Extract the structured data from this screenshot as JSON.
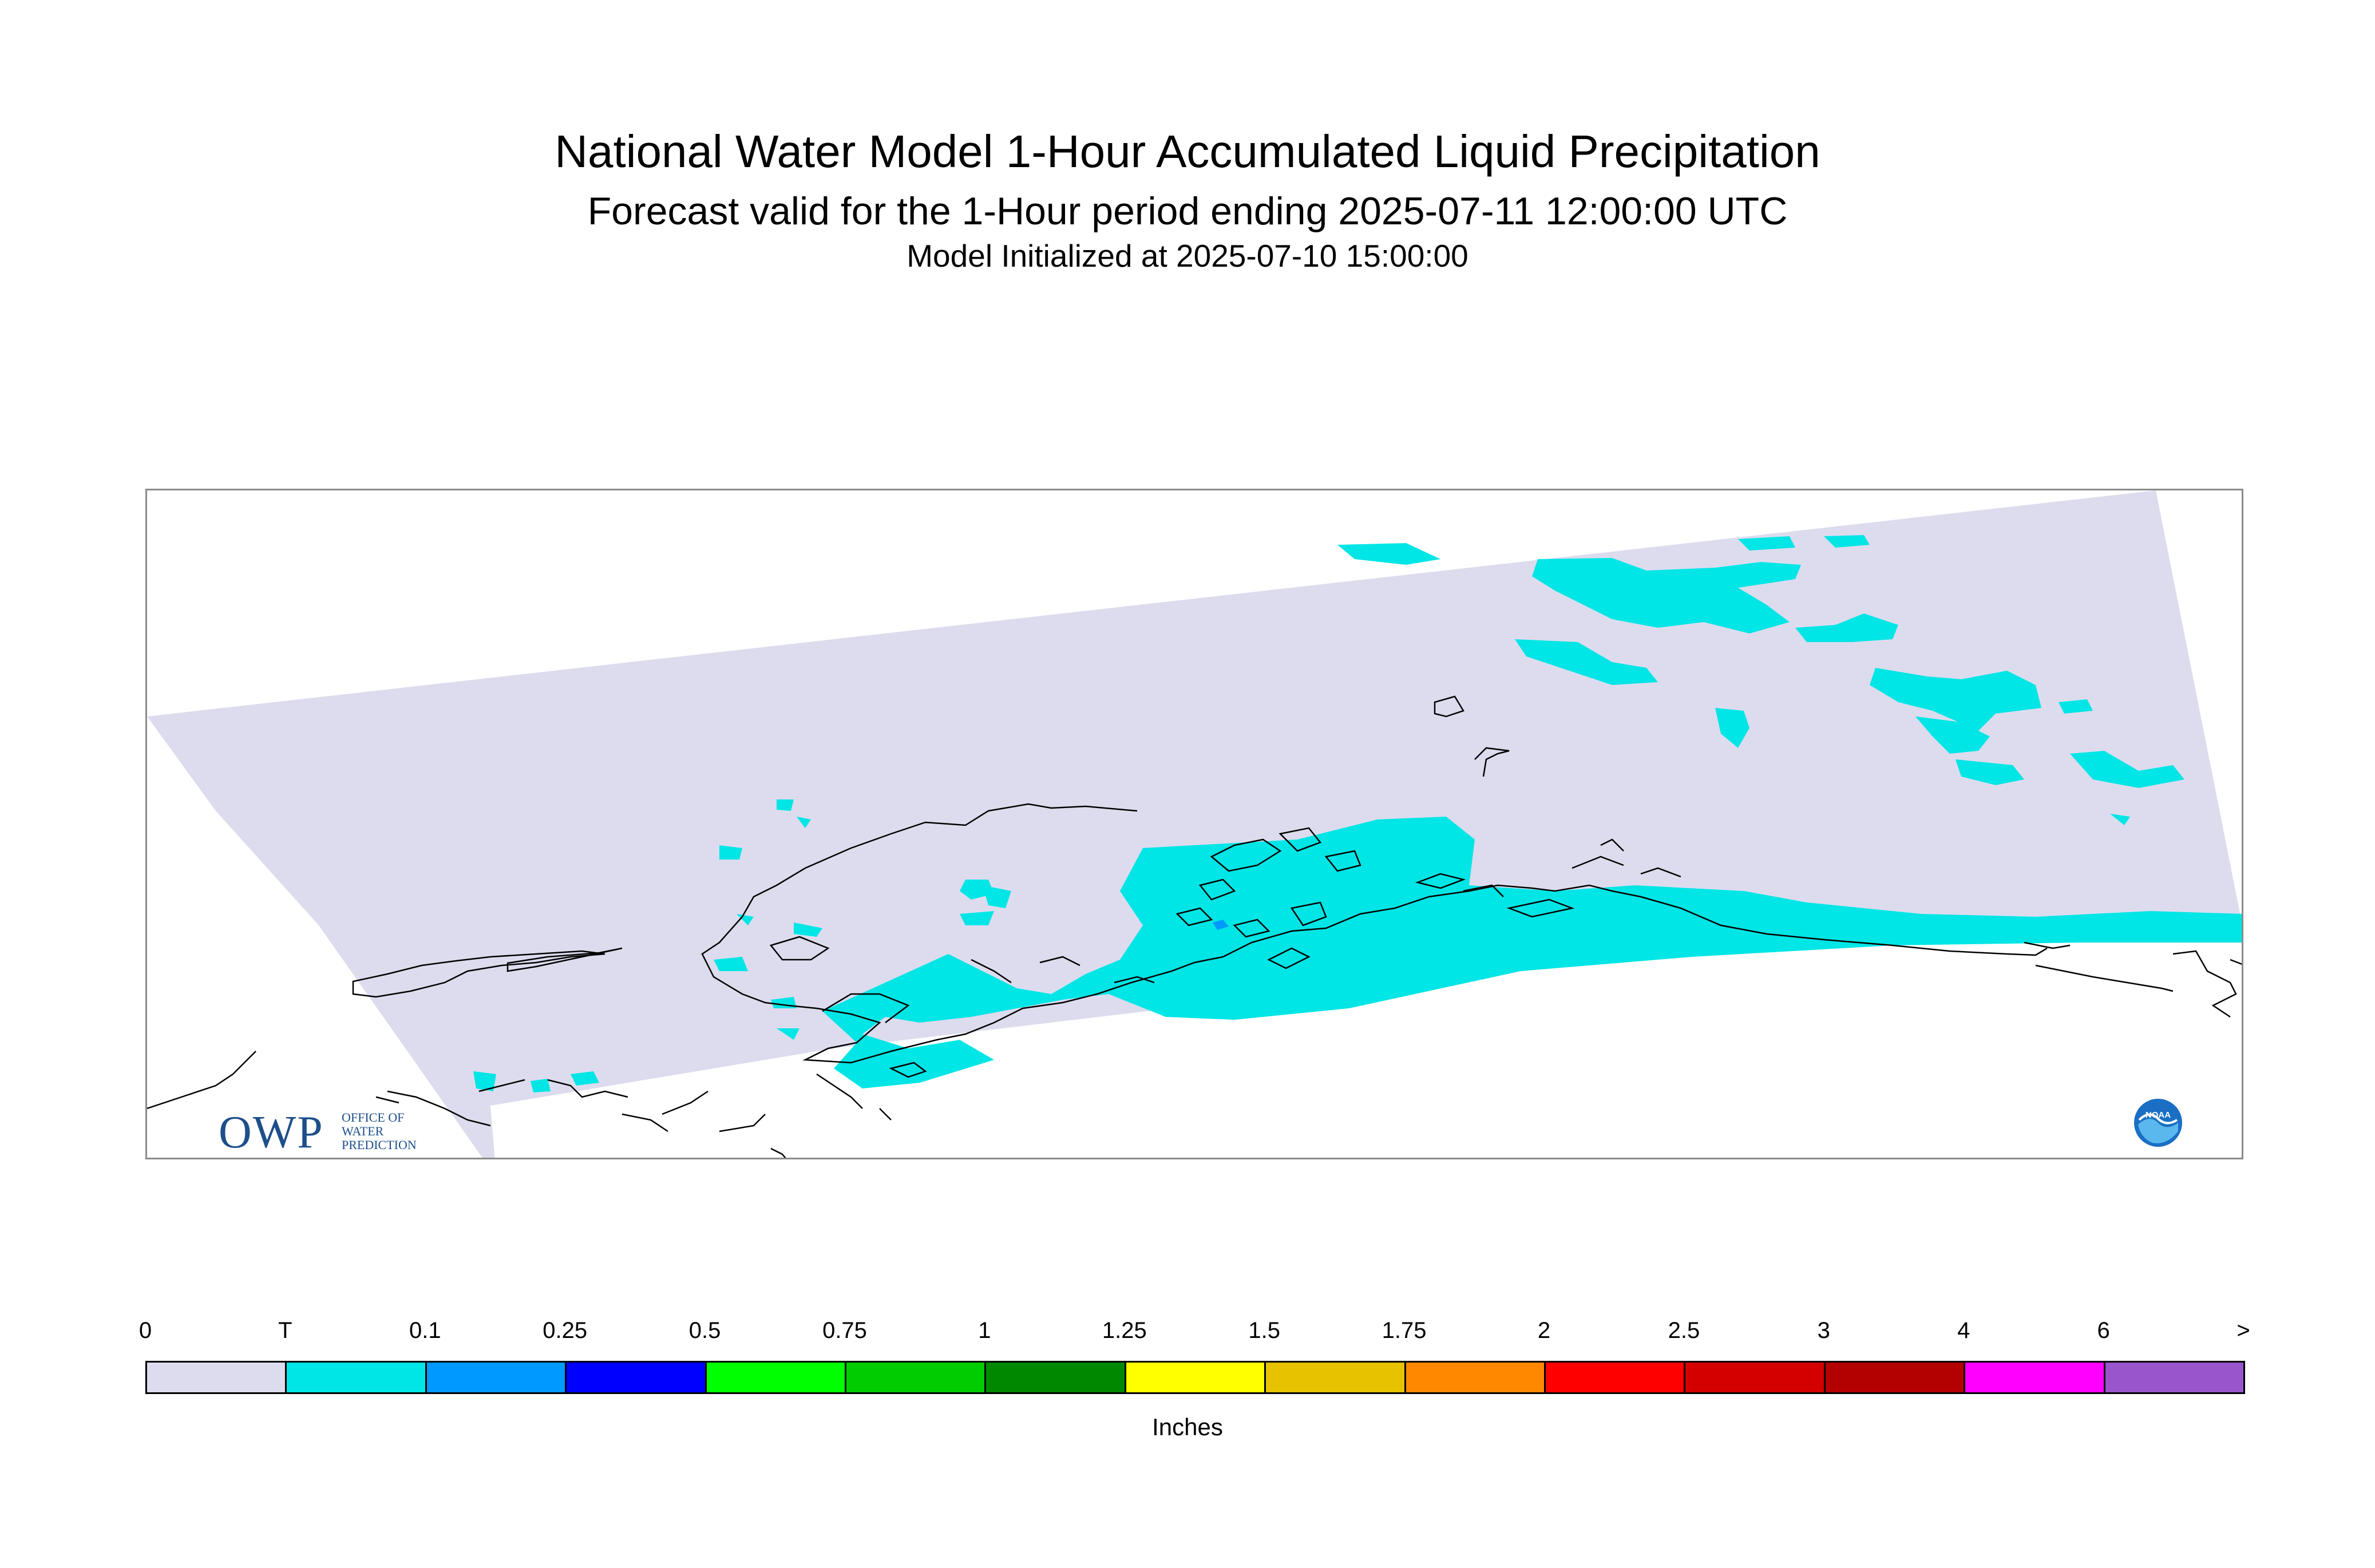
{
  "title": "National Water Model 1-Hour Accumulated Liquid Precipitation",
  "subtitle": "Forecast valid for the 1-Hour period ending 2025-07-11 12:00:00 UTC",
  "init_line": "Model Initialized at 2025-07-10 15:00:00",
  "logo": {
    "owp_mark": "OWP",
    "owp_text_1": "OFFICE OF",
    "owp_text_2": "WATER",
    "owp_text_3": "PREDICTION",
    "noaa": "NOAA"
  },
  "colors": {
    "domain_fill": "#dcdcee",
    "coastline": "#000000",
    "trace": "#00e5e5",
    "light_blue": "#0099ff"
  },
  "colorbar": {
    "units": "Inches",
    "ticks": [
      "0",
      "T",
      "0.1",
      "0.25",
      "0.5",
      "0.75",
      "1",
      "1.25",
      "1.5",
      "1.75",
      "2",
      "2.5",
      "3",
      "4",
      "6",
      ">"
    ],
    "colors": [
      "#dcdcee",
      "#00e5e5",
      "#0099ff",
      "#0000ff",
      "#00ff00",
      "#00cc00",
      "#008800",
      "#ffff00",
      "#e6c200",
      "#ff8800",
      "#ff0000",
      "#d40000",
      "#b30000",
      "#ff00ff",
      "#9955cc"
    ]
  }
}
